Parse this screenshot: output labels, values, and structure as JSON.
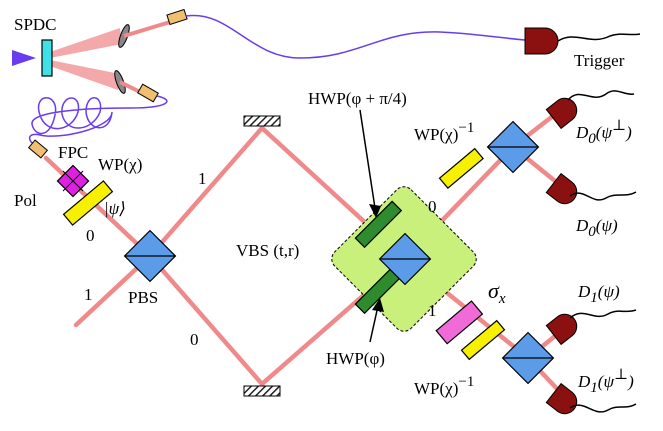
{
  "labels": {
    "spdc": "SPDC",
    "trigger": "Trigger",
    "fpc": "FPC",
    "pol": "Pol",
    "wp_chi": "WP(χ)",
    "psi_ket": "|ψ⟩",
    "pbs": "PBS",
    "vbs": "VBS (t,r)",
    "hwp_top": "HWP(φ + π/4)",
    "hwp_bottom": "HWP(φ)",
    "wp_inv_top": "WP(χ)",
    "wp_inv_top_sup": "−1",
    "wp_inv_bottom": "WP(χ)",
    "wp_inv_bottom_sup": "−1",
    "sigma_x": "σ",
    "sigma_x_sub": "x",
    "d0_perp": "D",
    "d0_perp_sub": "0",
    "d0_perp_arg": "(ψ",
    "d0_perp_sup": "⊥",
    "d0_perp_close": ")",
    "d0_psi": "D",
    "d0_psi_sub": "0",
    "d0_psi_arg": "(ψ)",
    "d1_psi": "D",
    "d1_psi_sub": "1",
    "d1_psi_arg": "(ψ)",
    "d1_perp": "D",
    "d1_perp_sub": "1",
    "d1_perp_arg": "(ψ",
    "d1_perp_sup": "⊥",
    "d1_perp_close": ")",
    "port_pbs_out_1": "1",
    "port_pbs_in_0": "0",
    "port_pbs_in_1": "1",
    "port_pbs_out_0": "0",
    "port_vbs_out_0": "0",
    "port_vbs_out_1": "1"
  },
  "colors": {
    "beam": "#f08a8a",
    "cone": "#f2a0a0",
    "fiber": "#6a3cf0",
    "detector": "#8b1010",
    "cube": "#5b9be8",
    "wp_yellow": "#f7f000",
    "hwp_green": "#2e8b2e",
    "sigma_pink": "#f06ad8",
    "pol_magenta": "#e020e0",
    "vbs_box": "#c8f07a",
    "coupler": "#f0c070",
    "crystal": "#40e0e8",
    "pump": "#6a3cf0"
  }
}
